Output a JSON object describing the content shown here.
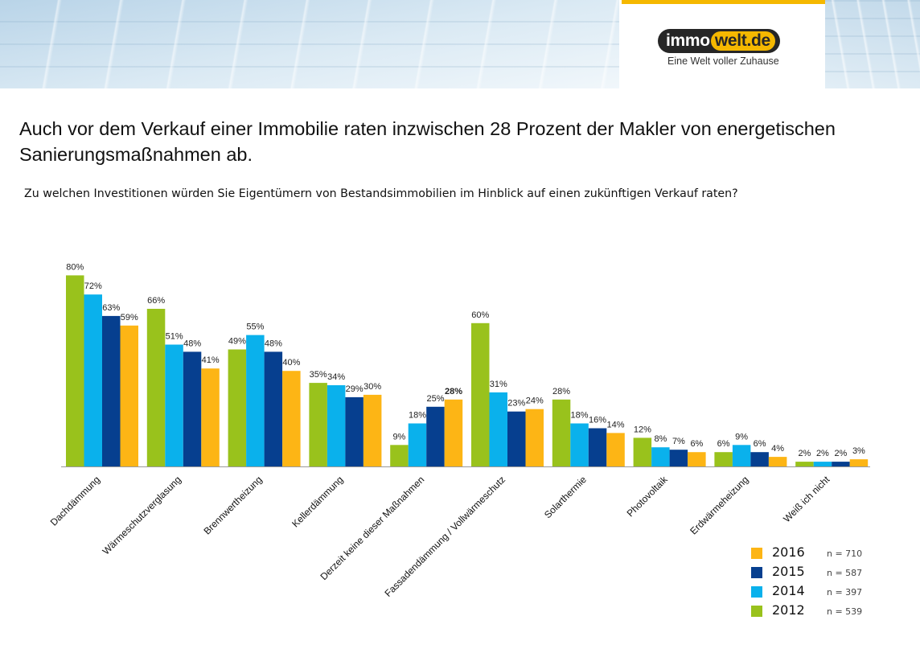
{
  "header": {
    "logo_part1": "immo",
    "logo_part2": "welt.de",
    "tagline": "Eine Welt voller Zuhause"
  },
  "title": "Auch vor dem Verkauf einer Immobilie raten inzwischen 28 Prozent der Makler von energetischen Sanierungsmaßnahmen ab.",
  "subtitle": "Zu welchen Investitionen würden Sie Eigentümern von Bestandsimmobilien im Hinblick auf einen zukünftigen Verkauf raten?",
  "colors": {
    "2012": "#99c21c",
    "2014": "#0ab1ec",
    "2015": "#063f8f",
    "2016": "#fdb515"
  },
  "chart_data": {
    "type": "bar",
    "categories": [
      "Dachdämmung",
      "Wärmeschutzverglasung",
      "Brennwertheizung",
      "Kellerdämmung",
      "Derzeit keine dieser Maßnahmen",
      "Fassadendämmung / Vollwärmeschutz",
      "Solarthermie",
      "Photovoltaik",
      "Erdwärmeheizung",
      "Weiß ich nicht"
    ],
    "series": [
      {
        "name": "2012",
        "values": [
          80,
          66,
          49,
          35,
          9,
          60,
          28,
          12,
          6,
          2
        ]
      },
      {
        "name": "2014",
        "values": [
          72,
          51,
          55,
          34,
          18,
          31,
          18,
          8,
          9,
          2
        ]
      },
      {
        "name": "2015",
        "values": [
          63,
          48,
          48,
          29,
          25,
          23,
          16,
          7,
          6,
          2
        ]
      },
      {
        "name": "2016",
        "values": [
          59,
          41,
          40,
          30,
          28,
          24,
          14,
          6,
          4,
          3
        ]
      }
    ],
    "value_labels": [
      [
        "80%",
        "66%",
        "49%",
        "35%",
        "9%",
        "60%",
        "28%",
        "12%",
        "6%",
        "2%"
      ],
      [
        "72%",
        "51%",
        "55%",
        "34%",
        "18%",
        "31%",
        "18%",
        "8%",
        "9%",
        "2%"
      ],
      [
        "63%",
        "48%",
        "48%",
        "29%",
        "25%",
        "23%",
        "16%",
        "7%",
        "6%",
        "2%"
      ],
      [
        "59%",
        "41%",
        "40%",
        "30%",
        "28%",
        "24%",
        "14%",
        "6%",
        "4%",
        "3%"
      ]
    ],
    "emphasized_label": {
      "series": 3,
      "category": 4
    },
    "unit": "%",
    "ylim": [
      0,
      80
    ],
    "grid": false,
    "legend": {
      "placement": "bottom-right",
      "order": [
        "2016",
        "2015",
        "2014",
        "2012"
      ],
      "entries": [
        {
          "year": "2016",
          "n": "n = 710"
        },
        {
          "year": "2015",
          "n": "n = 587"
        },
        {
          "year": "2014",
          "n": "n = 397"
        },
        {
          "year": "2012",
          "n": "n = 539"
        }
      ]
    }
  }
}
